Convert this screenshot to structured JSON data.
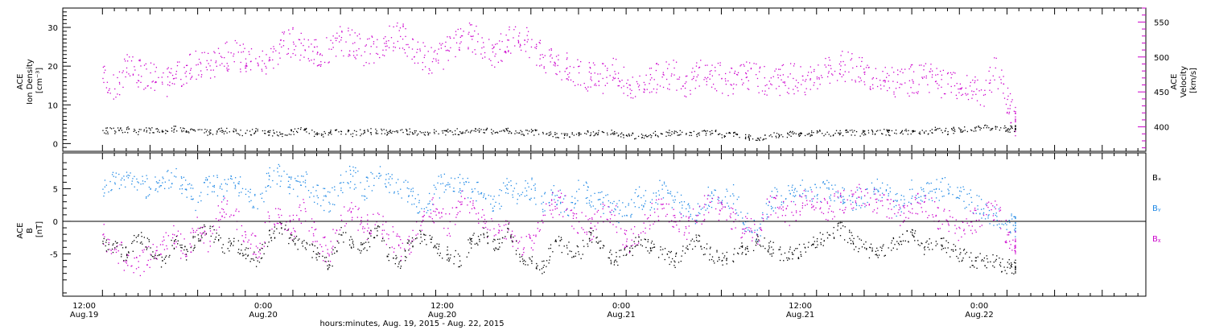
{
  "chart_data": [
    {
      "type": "scatter",
      "title": "",
      "ylabel_left": [
        "ACE",
        "Ion Density",
        "[cm⁻³]"
      ],
      "ylabel_right": [
        "ACE",
        "Velocity",
        "[km/s]"
      ],
      "ylim_left": [
        -2,
        35
      ],
      "yticks_left": [
        0,
        10,
        20,
        30
      ],
      "ylim_right": [
        365,
        570
      ],
      "yticks_right": [
        400,
        450,
        500,
        550
      ],
      "series": [
        {
          "axis": "left",
          "color": "#000000",
          "x": [
            0,
            3,
            6,
            9,
            12,
            15,
            18,
            21,
            24,
            27,
            30,
            33,
            36,
            39,
            42,
            45,
            48,
            51,
            54,
            57,
            60,
            63,
            66,
            69,
            72,
            75,
            78,
            81,
            84,
            87,
            90,
            93,
            96,
            99,
            102,
            105,
            108,
            111,
            114,
            117,
            120,
            123,
            126,
            129,
            132,
            135,
            138,
            141,
            144,
            147,
            150,
            153,
            156,
            159,
            162,
            165,
            168,
            171,
            174,
            177,
            180,
            183,
            186,
            189,
            192,
            195,
            198,
            201,
            204,
            207,
            210,
            213,
            216,
            219,
            222,
            225,
            228,
            230
          ],
          "y": [
            3.5,
            3.4,
            3.8,
            3.2,
            3.6,
            3.1,
            3.9,
            3.3,
            3.7,
            2.9,
            3.5,
            3.2,
            2.8,
            3.4,
            3.0,
            2.6,
            3.2,
            3.8,
            2.4,
            2.9,
            3.3,
            2.7,
            3.1,
            3.4,
            2.8,
            3.6,
            3.0,
            2.5,
            3.3,
            3.1,
            3.2,
            3.5,
            3.7,
            3.0,
            3.4,
            2.9,
            3.1,
            2.7,
            2.5,
            2.2,
            2.6,
            2.9,
            3.1,
            2.8,
            2.3,
            2.0,
            2.4,
            2.6,
            2.9,
            2.5,
            2.7,
            3.2,
            2.4,
            2.8,
            1.8,
            1.5,
            2.1,
            2.4,
            2.6,
            2.2,
            2.9,
            2.5,
            2.9,
            3.1,
            2.7,
            3.3,
            3.0,
            2.8,
            3.4,
            3.1,
            3.6,
            3.2,
            3.9,
            3.5,
            4.2,
            4.4,
            3.8,
            4.0
          ]
        },
        {
          "axis": "right",
          "color": "#CC00CC",
          "x": [
            0,
            3,
            6,
            9,
            12,
            15,
            18,
            21,
            24,
            27,
            30,
            33,
            36,
            39,
            42,
            45,
            48,
            51,
            54,
            57,
            60,
            63,
            66,
            69,
            72,
            75,
            78,
            81,
            84,
            87,
            90,
            93,
            96,
            99,
            102,
            105,
            108,
            111,
            114,
            117,
            120,
            123,
            126,
            129,
            132,
            135,
            138,
            141,
            144,
            147,
            150,
            153,
            156,
            159,
            162,
            165,
            168,
            171,
            174,
            177,
            180,
            183,
            186,
            189,
            192,
            195,
            198,
            201,
            204,
            207,
            210,
            213,
            216,
            219,
            222,
            225,
            228,
            230
          ],
          "y": [
            470,
            455,
            485,
            475,
            478,
            462,
            470,
            480,
            490,
            488,
            500,
            505,
            498,
            492,
            500,
            515,
            522,
            510,
            505,
            512,
            525,
            520,
            508,
            515,
            524,
            530,
            512,
            500,
            495,
            510,
            520,
            530,
            515,
            505,
            525,
            535,
            515,
            500,
            488,
            485,
            478,
            472,
            470,
            480,
            463,
            458,
            468,
            472,
            475,
            465,
            475,
            480,
            470,
            462,
            478,
            470,
            466,
            468,
            470,
            466,
            472,
            480,
            488,
            485,
            476,
            470,
            466,
            462,
            468,
            472,
            466,
            462,
            455,
            452,
            446,
            485,
            440,
            410
          ]
        }
      ]
    },
    {
      "type": "scatter",
      "title": "",
      "ylabel": [
        "ACE",
        "B",
        "[nT]"
      ],
      "ylim": [
        -11.5,
        10.5
      ],
      "yticks": [
        -5,
        0,
        5
      ],
      "zero_line": true,
      "legend_placement": "right",
      "series": [
        {
          "name": "Bₓ",
          "color": "#000000",
          "x": [
            0,
            3,
            6,
            9,
            12,
            15,
            18,
            21,
            24,
            27,
            30,
            33,
            36,
            39,
            42,
            45,
            48,
            51,
            54,
            57,
            60,
            63,
            66,
            69,
            72,
            75,
            78,
            81,
            84,
            87,
            90,
            93,
            96,
            99,
            102,
            105,
            108,
            111,
            114,
            117,
            120,
            123,
            126,
            129,
            132,
            135,
            138,
            141,
            144,
            147,
            150,
            153,
            156,
            159,
            162,
            165,
            168,
            171,
            174,
            177,
            180,
            183,
            186,
            189,
            192,
            195,
            198,
            201,
            204,
            207,
            210,
            213,
            216,
            219,
            222,
            225,
            228,
            230
          ],
          "y": [
            -3,
            -4,
            -5,
            -2,
            -4,
            -6,
            -3,
            -5,
            -2,
            -1,
            -4,
            -3,
            -5,
            -6,
            -2,
            -1,
            -3,
            -4,
            -5,
            -7,
            -2,
            -3,
            -4,
            -1,
            -5,
            -6,
            -3,
            -2,
            -4,
            -5,
            -6,
            -3,
            -2,
            -4,
            -1,
            -5,
            -6,
            -7,
            -3,
            -4,
            -5,
            -2,
            -4,
            -6,
            -5,
            -3,
            -4,
            -5,
            -6,
            -4,
            -3,
            -5,
            -6,
            -5,
            -4,
            -3,
            -4,
            -5,
            -5,
            -4,
            -3,
            -2,
            -1,
            -3,
            -4,
            -5,
            -4,
            -3,
            -2,
            -4,
            -3,
            -4,
            -5,
            -6,
            -6,
            -6,
            -7,
            -7
          ]
        },
        {
          "name": "Bᵧ",
          "color": "#1E88E5",
          "x": [
            0,
            3,
            6,
            9,
            12,
            15,
            18,
            21,
            24,
            27,
            30,
            33,
            36,
            39,
            42,
            45,
            48,
            51,
            54,
            57,
            60,
            63,
            66,
            69,
            72,
            75,
            78,
            81,
            84,
            87,
            90,
            93,
            96,
            99,
            102,
            105,
            108,
            111,
            114,
            117,
            120,
            123,
            126,
            129,
            132,
            135,
            138,
            141,
            144,
            147,
            150,
            153,
            156,
            159,
            162,
            165,
            168,
            171,
            174,
            177,
            180,
            183,
            186,
            189,
            192,
            195,
            198,
            201,
            204,
            207,
            210,
            213,
            216,
            219,
            222,
            225,
            228,
            230
          ],
          "y": [
            5,
            6,
            7,
            6,
            5,
            6,
            7,
            5,
            3,
            6,
            5,
            6,
            5,
            2,
            7,
            7,
            5,
            6,
            4,
            3,
            6,
            7,
            5,
            7,
            6,
            5,
            4,
            2,
            5,
            6,
            6,
            5,
            4,
            3,
            5,
            4,
            5,
            3,
            4,
            2,
            5,
            4,
            3,
            2,
            1,
            4,
            3,
            5,
            3,
            2,
            1,
            4,
            3,
            4,
            0,
            -2,
            3,
            4,
            4,
            5,
            4,
            5,
            4,
            3,
            4,
            5,
            4,
            2,
            5,
            4,
            5,
            5,
            4,
            3,
            2,
            1,
            0,
            -1
          ]
        },
        {
          "name": "Bᵪ",
          "color": "#CC00CC",
          "x": [
            0,
            3,
            6,
            9,
            12,
            15,
            18,
            21,
            24,
            27,
            30,
            33,
            36,
            39,
            42,
            45,
            48,
            51,
            54,
            57,
            60,
            63,
            66,
            69,
            72,
            75,
            78,
            81,
            84,
            87,
            90,
            93,
            96,
            99,
            102,
            105,
            108,
            111,
            114,
            117,
            120,
            123,
            126,
            129,
            132,
            135,
            138,
            141,
            144,
            147,
            150,
            153,
            156,
            159,
            162,
            165,
            168,
            171,
            174,
            177,
            180,
            183,
            186,
            189,
            192,
            195,
            198,
            201,
            204,
            207,
            210,
            213,
            216,
            219,
            222,
            225,
            228,
            230
          ],
          "y": [
            -2,
            -4,
            -6,
            -7,
            -5,
            -3,
            -2,
            -5,
            -1,
            -3,
            2,
            1,
            -2,
            -4,
            0,
            1,
            -1,
            2,
            -3,
            -5,
            1,
            2,
            -1,
            0,
            -2,
            -4,
            -3,
            1,
            2,
            -1,
            3,
            2,
            0,
            -2,
            -1,
            -3,
            -4,
            1,
            3,
            2,
            0,
            -1,
            2,
            1,
            -3,
            -2,
            1,
            2,
            0,
            -1,
            1,
            3,
            2,
            0,
            -1,
            -2,
            3,
            2,
            1,
            4,
            3,
            2,
            3,
            4,
            4,
            3,
            2,
            1,
            2,
            3,
            1,
            0,
            -1,
            0,
            1,
            2,
            -2,
            -3
          ]
        }
      ]
    }
  ],
  "x_axis": {
    "ticks": [
      {
        "top": "12:00",
        "bottom": "Aug.19"
      },
      {
        "top": "0:00",
        "bottom": "Aug.20"
      },
      {
        "top": "12:00",
        "bottom": "Aug.20"
      },
      {
        "top": "0:00",
        "bottom": "Aug.21"
      },
      {
        "top": "12:00",
        "bottom": "Aug.21"
      },
      {
        "top": "0:00",
        "bottom": "Aug.22"
      }
    ],
    "title": "hours:minutes, Aug. 19, 2015 - Aug. 22, 2015"
  }
}
